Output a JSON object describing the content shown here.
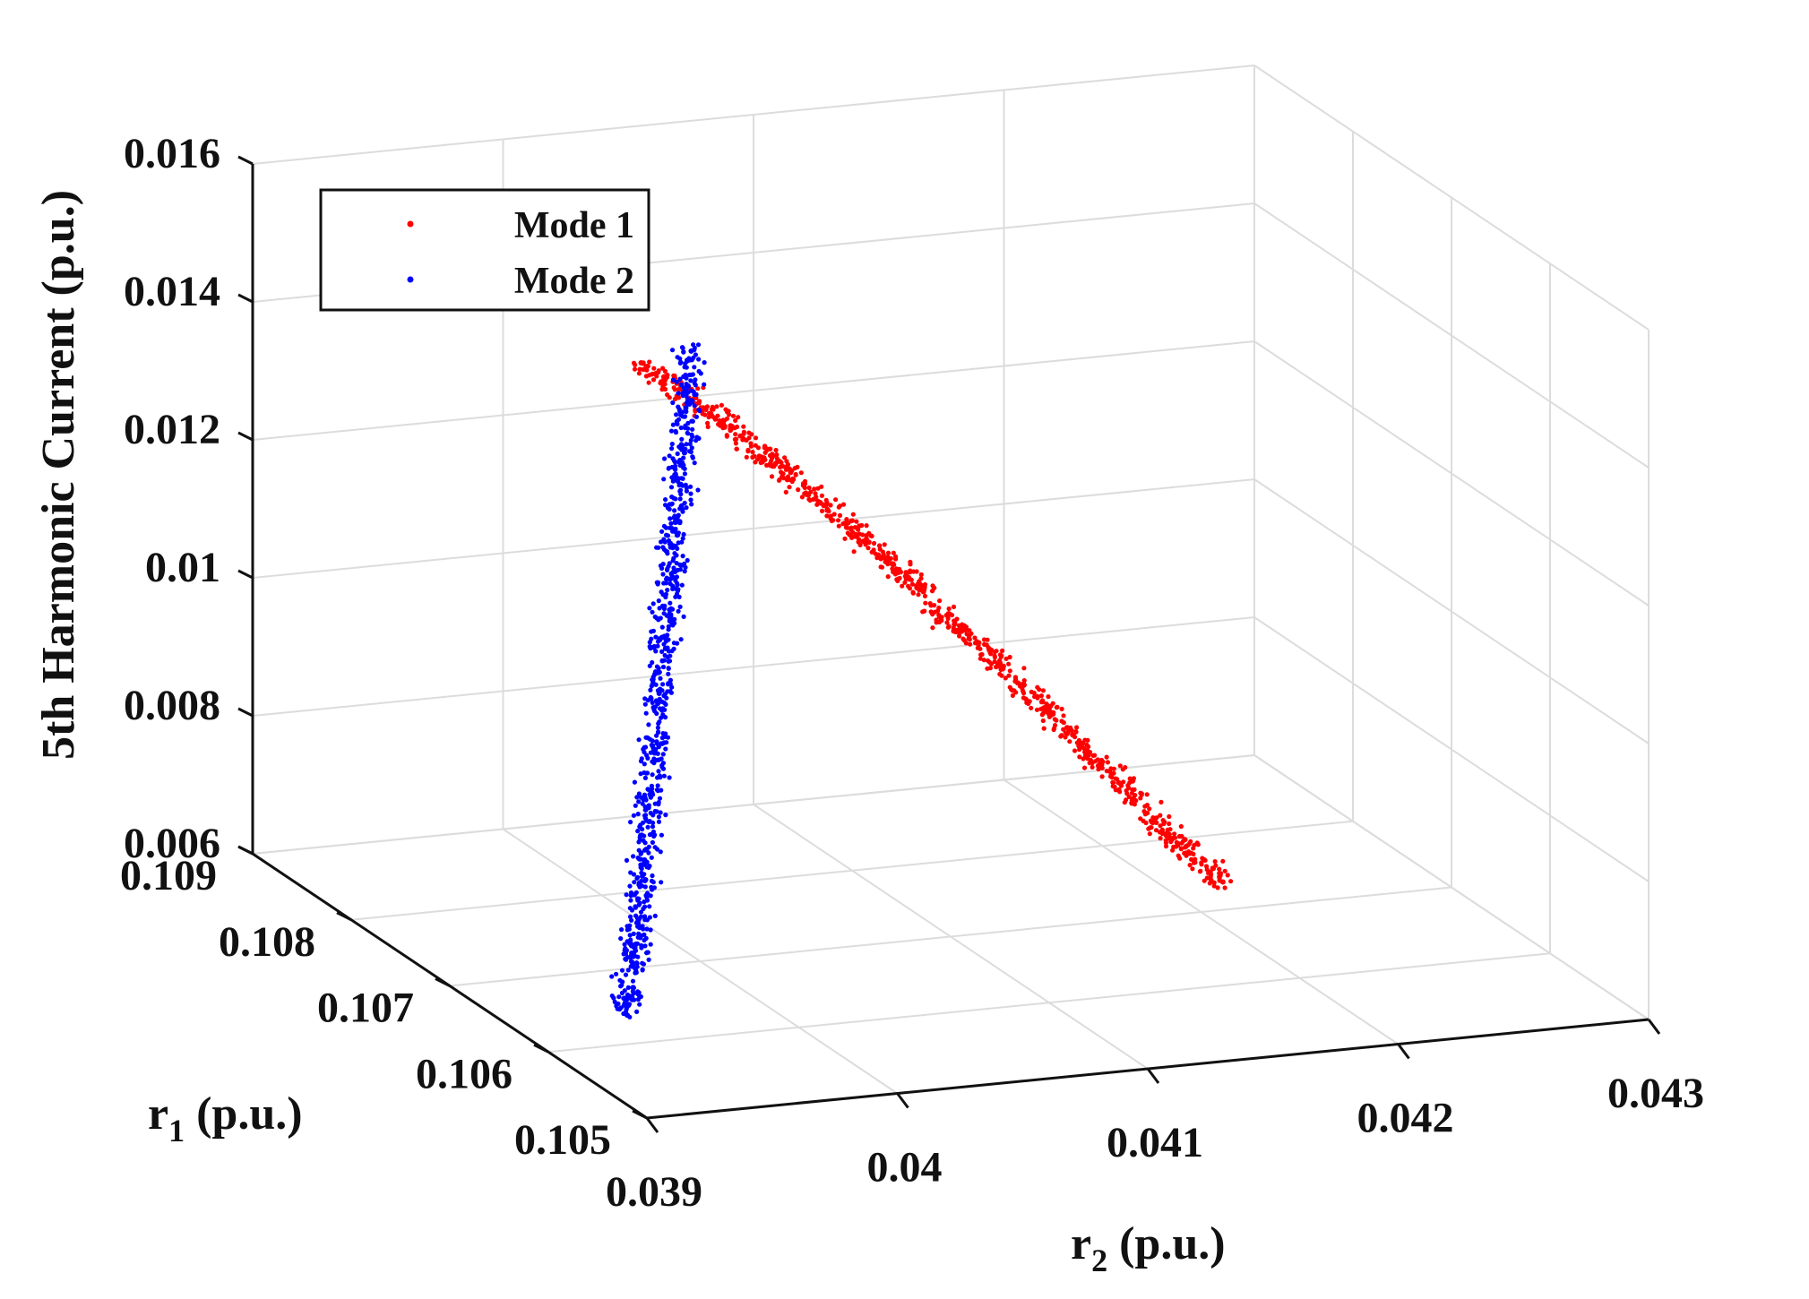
{
  "chart_data": {
    "type": "scatter3d",
    "zlabel": "5th Harmonic Current (p.u.)",
    "xlabel": "r",
    "xlabel_sub": "2",
    "xlabel_unit": " (p.u.)",
    "ylabel": "r",
    "ylabel_sub": "1",
    "ylabel_unit": " (p.u.)",
    "x_ticks": [
      "0.039",
      "0.04",
      "0.041",
      "0.042",
      "0.043"
    ],
    "y_ticks": [
      "0.105",
      "0.106",
      "0.107",
      "0.108",
      "0.109"
    ],
    "z_ticks": [
      "0.006",
      "0.008",
      "0.01",
      "0.012",
      "0.014",
      "0.016"
    ],
    "xlim": [
      0.039,
      0.043
    ],
    "ylim": [
      0.105,
      0.109
    ],
    "zlim": [
      0.006,
      0.016
    ],
    "grid": true,
    "legend_position": "top-left",
    "series": [
      {
        "name": "Mode 1",
        "color": "#ff0000",
        "points": [
          [
            0.04,
            0.1076,
            0.0141
          ],
          [
            0.0401,
            0.1074,
            0.0138
          ],
          [
            0.0402,
            0.1072,
            0.0135
          ],
          [
            0.0403,
            0.107,
            0.0131
          ],
          [
            0.0404,
            0.1068,
            0.0127
          ],
          [
            0.0405,
            0.1066,
            0.0123
          ],
          [
            0.0406,
            0.1064,
            0.0119
          ],
          [
            0.0407,
            0.1062,
            0.0114
          ],
          [
            0.0408,
            0.106,
            0.011
          ],
          [
            0.0409,
            0.1058,
            0.0105
          ],
          [
            0.041,
            0.1056,
            0.01
          ],
          [
            0.0411,
            0.1054,
            0.0095
          ],
          [
            0.0412,
            0.1052,
            0.009
          ],
          [
            0.0413,
            0.105,
            0.0086
          ]
        ]
      },
      {
        "name": "Mode 2",
        "color": "#0000ff",
        "points": [
          [
            0.039,
            0.1052,
            0.0073
          ],
          [
            0.0391,
            0.1054,
            0.0078
          ],
          [
            0.0392,
            0.1056,
            0.0082
          ],
          [
            0.0393,
            0.1058,
            0.0088
          ],
          [
            0.0394,
            0.106,
            0.0094
          ],
          [
            0.0395,
            0.1062,
            0.01
          ],
          [
            0.0396,
            0.1064,
            0.0106
          ],
          [
            0.0397,
            0.1066,
            0.0112
          ],
          [
            0.0398,
            0.1068,
            0.0118
          ],
          [
            0.0399,
            0.107,
            0.0124
          ],
          [
            0.04,
            0.1072,
            0.013
          ],
          [
            0.0401,
            0.1074,
            0.0136
          ],
          [
            0.0402,
            0.1076,
            0.0142
          ]
        ]
      }
    ]
  }
}
